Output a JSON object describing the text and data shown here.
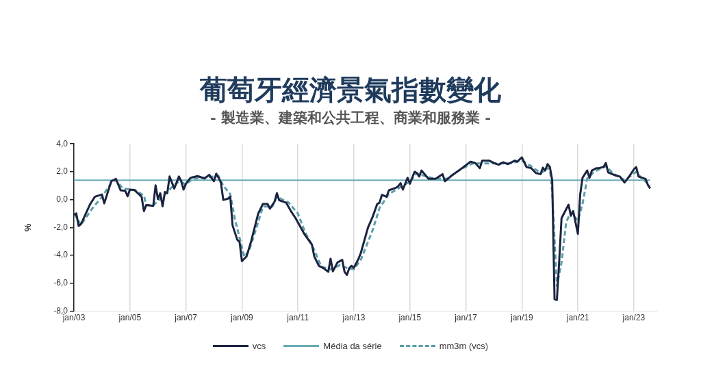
{
  "chart_data": {
    "type": "line",
    "title": "葡萄牙經濟景氣指數變化",
    "subtitle": "- 製造業、建築和公共工程、商業和服務業 -",
    "ylabel": "%",
    "xlim": [
      "2003-01",
      "2023-11"
    ],
    "xticks": [
      {
        "value": "2003-01",
        "label": "jan/03"
      },
      {
        "value": "2005-01",
        "label": "jan/05"
      },
      {
        "value": "2007-01",
        "label": "jan/07"
      },
      {
        "value": "2009-01",
        "label": "jan/09"
      },
      {
        "value": "2011-01",
        "label": "jan/11"
      },
      {
        "value": "2013-01",
        "label": "jan/13"
      },
      {
        "value": "2015-01",
        "label": "jan/15"
      },
      {
        "value": "2017-01",
        "label": "jan/17"
      },
      {
        "value": "2019-01",
        "label": "jan/19"
      },
      {
        "value": "2021-01",
        "label": "jan/21"
      },
      {
        "value": "2023-01",
        "label": "jan/23"
      }
    ],
    "ylim": [
      -8,
      4
    ],
    "yticks": [
      {
        "value": -8,
        "label": "-8,0"
      },
      {
        "value": -6,
        "label": "-6,0"
      },
      {
        "value": -4,
        "label": "-4,0"
      },
      {
        "value": -2,
        "label": "-2,0"
      },
      {
        "value": 0,
        "label": "0,0"
      },
      {
        "value": 2,
        "label": "2,0"
      },
      {
        "value": 4,
        "label": "4,0"
      }
    ],
    "grid": "x",
    "legend": "bottom",
    "marker": "none",
    "series": [
      {
        "name": "vcs",
        "color": "#1b2340",
        "line_style": "solid",
        "x": [
          "2003-01",
          "2003-02",
          "2003-03",
          "2003-04",
          "2003-08",
          "2003-10",
          "2004-01",
          "2004-02",
          "2004-05",
          "2004-07",
          "2004-09",
          "2004-11",
          "2004-12",
          "2005-01",
          "2005-03",
          "2005-06",
          "2005-07",
          "2005-08",
          "2005-11",
          "2005-12",
          "2006-01",
          "2006-02",
          "2006-03",
          "2006-04",
          "2006-05",
          "2006-06",
          "2006-08",
          "2006-10",
          "2006-11",
          "2006-12",
          "2007-01",
          "2007-03",
          "2007-06",
          "2007-09",
          "2007-11",
          "2008-01",
          "2008-02",
          "2008-03",
          "2008-04",
          "2008-05",
          "2008-07",
          "2008-08",
          "2008-09",
          "2008-11",
          "2008-12",
          "2009-01",
          "2009-03",
          "2009-05",
          "2009-08",
          "2009-10",
          "2009-12",
          "2010-01",
          "2010-03",
          "2010-04",
          "2010-05",
          "2010-08",
          "2010-10",
          "2010-12",
          "2011-04",
          "2011-07",
          "2011-08",
          "2011-10",
          "2011-12",
          "2012-02",
          "2012-03",
          "2012-04",
          "2012-06",
          "2012-08",
          "2012-09",
          "2012-10",
          "2012-11",
          "2012-12",
          "2013-01",
          "2013-03",
          "2013-04",
          "2013-07",
          "2013-09",
          "2013-11",
          "2013-12",
          "2014-01",
          "2014-03",
          "2014-04",
          "2014-07",
          "2014-08",
          "2014-09",
          "2014-10",
          "2014-12",
          "2015-01",
          "2015-03",
          "2015-04",
          "2015-05",
          "2015-06",
          "2015-09",
          "2015-12",
          "2016-03",
          "2016-04",
          "2016-07",
          "2016-10",
          "2016-12",
          "2017-03",
          "2017-05",
          "2017-07",
          "2017-08",
          "2017-11",
          "2018-01",
          "2018-03",
          "2018-05",
          "2018-07",
          "2018-10",
          "2018-11",
          "2019-01",
          "2019-03",
          "2019-05",
          "2019-07",
          "2019-09",
          "2019-10",
          "2019-11",
          "2019-12",
          "2020-01",
          "2020-02",
          "2020-03",
          "2020-04",
          "2020-05",
          "2020-06",
          "2020-09",
          "2020-10",
          "2020-11",
          "2021-01",
          "2021-02",
          "2021-03",
          "2021-05",
          "2021-06",
          "2021-07",
          "2021-09",
          "2021-10",
          "2021-12",
          "2022-01",
          "2022-02",
          "2022-05",
          "2022-07",
          "2022-09",
          "2022-11",
          "2023-01",
          "2023-02",
          "2023-03",
          "2023-06",
          "2023-07",
          "2023-08"
        ],
        "values": [
          -1.08,
          -0.99,
          -1.88,
          -1.76,
          -0.31,
          0.21,
          0.37,
          -0.27,
          1.32,
          1.49,
          0.67,
          0.63,
          0.24,
          0.72,
          0.68,
          0.21,
          -0.82,
          -0.39,
          -0.45,
          1.03,
          0.04,
          0.46,
          -0.48,
          0.55,
          0.46,
          1.66,
          0.8,
          1.66,
          1.32,
          0.72,
          1.14,
          1.57,
          1.69,
          1.52,
          1.78,
          1.32,
          1.86,
          1.57,
          1.23,
          -0.02,
          0.07,
          0.21,
          -1.85,
          -2.87,
          -3.04,
          -4.41,
          -4.07,
          -2.96,
          -0.99,
          -0.31,
          -0.31,
          -0.65,
          -0.14,
          0.46,
          -0.05,
          -0.22,
          -0.82,
          -1.33,
          -2.53,
          -3.22,
          -4.07,
          -4.75,
          -4.92,
          -5.18,
          -4.24,
          -5.14,
          -4.5,
          -4.32,
          -5.18,
          -5.4,
          -4.92,
          -4.75,
          -4.89,
          -4.24,
          -3.81,
          -2.02,
          -1.25,
          -0.31,
          -0.22,
          0.34,
          0.21,
          0.67,
          0.85,
          0.97,
          1.18,
          0.72,
          1.57,
          1.14,
          2.0,
          1.91,
          1.66,
          2.09,
          1.49,
          1.49,
          1.83,
          1.32,
          1.74,
          2.09,
          2.34,
          2.72,
          2.63,
          2.26,
          2.8,
          2.8,
          2.63,
          2.51,
          2.68,
          2.55,
          2.8,
          2.72,
          3.03,
          2.34,
          2.26,
          1.91,
          1.83,
          2.29,
          2.09,
          2.55,
          2.34,
          1.4,
          -7.14,
          -7.2,
          -4.41,
          -1.33,
          -0.36,
          -1.16,
          -0.82,
          -2.45,
          0.37,
          1.57,
          2.09,
          1.57,
          2.09,
          2.26,
          2.26,
          2.34,
          2.63,
          1.95,
          1.74,
          1.66,
          1.23,
          1.66,
          2.17,
          2.34,
          1.66,
          1.49,
          1.06,
          0.8
        ]
      },
      {
        "name": "Média da série",
        "color": "#6aacb4",
        "line_style": "solid",
        "x": [
          "2003-01",
          "2023-08"
        ],
        "values": [
          1.4,
          1.4
        ]
      },
      {
        "name": "mm3m (vcs)",
        "color": "#5a9ea8",
        "line_style": "dashed",
        "x": [
          "2003-01",
          "2003-04",
          "2003-09",
          "2004-01",
          "2004-05",
          "2004-07",
          "2004-10",
          "2005-03",
          "2005-07",
          "2005-08",
          "2005-11",
          "2006-03",
          "2006-07",
          "2006-10",
          "2007-01",
          "2007-04",
          "2007-10",
          "2008-03",
          "2008-05",
          "2008-08",
          "2008-10",
          "2009-01",
          "2009-02",
          "2009-04",
          "2009-08",
          "2009-10",
          "2010-02",
          "2010-04",
          "2010-09",
          "2011-01",
          "2011-04",
          "2011-08",
          "2011-11",
          "2012-03",
          "2012-07",
          "2012-10",
          "2013-01",
          "2013-04",
          "2013-09",
          "2013-12",
          "2014-04",
          "2014-08",
          "2015-01",
          "2015-04",
          "2015-09",
          "2016-01",
          "2016-05",
          "2016-11",
          "2017-04",
          "2017-09",
          "2018-03",
          "2018-08",
          "2019-01",
          "2019-05",
          "2019-09",
          "2020-01",
          "2020-02",
          "2020-04",
          "2020-06",
          "2020-08",
          "2020-10",
          "2021-01",
          "2021-03",
          "2021-05",
          "2021-08",
          "2022-01",
          "2022-04",
          "2022-09",
          "2023-02",
          "2023-04",
          "2023-08"
        ],
        "values": [
          -1.0,
          -1.8,
          -0.6,
          0.2,
          1.2,
          1.4,
          0.8,
          0.7,
          0.3,
          -0.4,
          -0.4,
          0.2,
          0.9,
          1.3,
          1.1,
          1.5,
          1.6,
          1.7,
          1.0,
          0.4,
          -1.4,
          -3.4,
          -4.1,
          -3.7,
          -1.6,
          -0.5,
          -0.5,
          0.2,
          -0.2,
          -1.0,
          -2.3,
          -3.6,
          -4.8,
          -5.0,
          -4.7,
          -4.9,
          -5.0,
          -4.3,
          -2.2,
          -0.6,
          0.4,
          0.8,
          1.3,
          1.9,
          1.6,
          1.5,
          1.5,
          2.2,
          2.6,
          2.6,
          2.6,
          2.6,
          2.8,
          2.4,
          1.9,
          2.3,
          0.5,
          -6.2,
          -4.5,
          -1.6,
          -0.9,
          -1.5,
          -0.3,
          1.5,
          2.0,
          2.4,
          1.9,
          1.4,
          2.0,
          1.6,
          1.0
        ]
      }
    ]
  }
}
